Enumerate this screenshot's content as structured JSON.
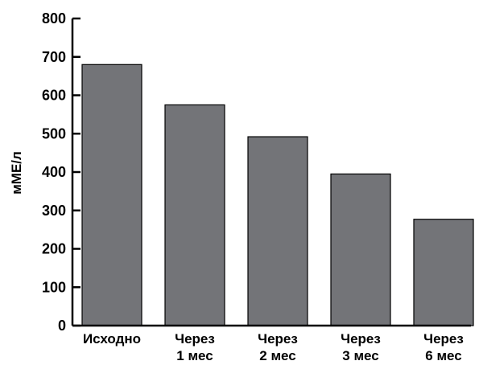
{
  "chart_data": {
    "type": "bar",
    "categories": [
      [
        "Исходно"
      ],
      [
        "Через",
        "1 мес"
      ],
      [
        "Через",
        "2 мес"
      ],
      [
        "Через",
        "3 мес"
      ],
      [
        "Через",
        "6 мес"
      ]
    ],
    "values": [
      680,
      575,
      492,
      395,
      277
    ],
    "title": "",
    "xlabel": "",
    "ylabel": "мМЕ/л",
    "ylim": [
      0,
      800
    ],
    "yticks": [
      0,
      100,
      200,
      300,
      400,
      500,
      600,
      700,
      800
    ],
    "grid": false,
    "legend": "none",
    "colors": {
      "bar_fill": "#737478",
      "bar_stroke": "#000000",
      "axis": "#000000"
    }
  }
}
